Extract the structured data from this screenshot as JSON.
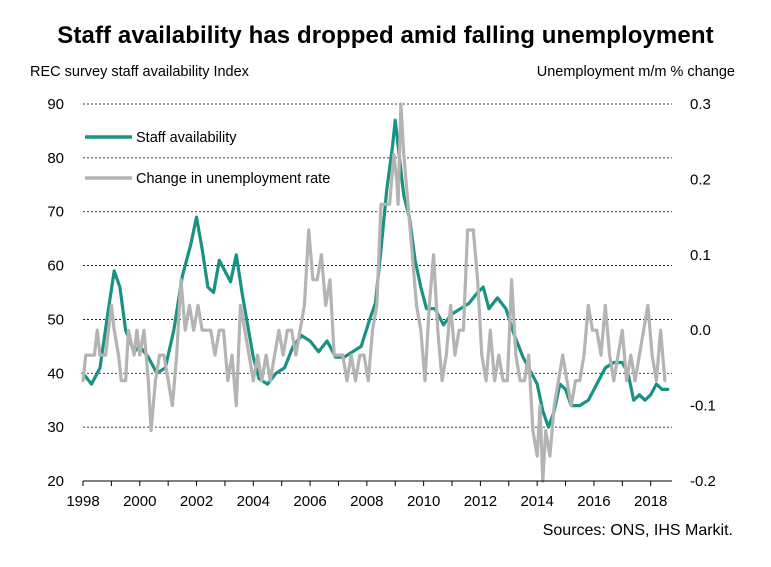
{
  "chart_data": {
    "type": "line",
    "title": "Staff availability has dropped amid falling unemployment",
    "ylabel": "REC survey staff availability  Index",
    "y2label": "Unemployment m/m % change",
    "source": "Sources: ONS,  IHS Markit.",
    "ylim": [
      20,
      90
    ],
    "y2lim": [
      -0.2,
      0.3
    ],
    "xlim": [
      1998,
      2018.75
    ],
    "x_ticks": [
      "1998",
      "2000",
      "2002",
      "2004",
      "2006",
      "2008",
      "2010",
      "2012",
      "2014",
      "2016",
      "2018"
    ],
    "y_ticks": [
      "90",
      "80",
      "70",
      "60",
      "50",
      "40",
      "30",
      "20"
    ],
    "y2_ticks": [
      "0.3",
      "0.2",
      "0.1",
      "0.0",
      "-0.1",
      "-0.2"
    ],
    "gridlines": "horizontal dashed",
    "legend_position": "top-left",
    "series": [
      {
        "name": "Staff availability",
        "axis": "left",
        "color": "#1a9283",
        "points": [
          [
            1998.0,
            40
          ],
          [
            1998.3,
            38
          ],
          [
            1998.6,
            41
          ],
          [
            1998.9,
            52
          ],
          [
            1999.1,
            59
          ],
          [
            1999.3,
            56
          ],
          [
            1999.5,
            48
          ],
          [
            1999.8,
            44
          ],
          [
            2000.0,
            45
          ],
          [
            2000.3,
            43
          ],
          [
            2000.6,
            40
          ],
          [
            2000.9,
            41
          ],
          [
            2001.2,
            48
          ],
          [
            2001.5,
            58
          ],
          [
            2001.8,
            64
          ],
          [
            2002.0,
            69
          ],
          [
            2002.2,
            63
          ],
          [
            2002.4,
            56
          ],
          [
            2002.6,
            55
          ],
          [
            2002.8,
            61
          ],
          [
            2003.0,
            59
          ],
          [
            2003.2,
            57
          ],
          [
            2003.4,
            62
          ],
          [
            2003.6,
            55
          ],
          [
            2003.8,
            49
          ],
          [
            2004.0,
            43
          ],
          [
            2004.2,
            39
          ],
          [
            2004.5,
            38
          ],
          [
            2004.8,
            40
          ],
          [
            2005.1,
            41
          ],
          [
            2005.4,
            45
          ],
          [
            2005.7,
            47
          ],
          [
            2006.0,
            46
          ],
          [
            2006.3,
            44
          ],
          [
            2006.6,
            46
          ],
          [
            2006.9,
            43
          ],
          [
            2007.2,
            43
          ],
          [
            2007.5,
            44
          ],
          [
            2007.8,
            45
          ],
          [
            2008.1,
            50
          ],
          [
            2008.3,
            53
          ],
          [
            2008.5,
            63
          ],
          [
            2008.7,
            74
          ],
          [
            2008.9,
            82
          ],
          [
            2009.0,
            87
          ],
          [
            2009.15,
            80
          ],
          [
            2009.3,
            73
          ],
          [
            2009.5,
            69
          ],
          [
            2009.7,
            61
          ],
          [
            2009.9,
            56
          ],
          [
            2010.1,
            52
          ],
          [
            2010.4,
            52
          ],
          [
            2010.7,
            49
          ],
          [
            2011.0,
            51
          ],
          [
            2011.3,
            52
          ],
          [
            2011.6,
            53
          ],
          [
            2011.9,
            55
          ],
          [
            2012.1,
            56
          ],
          [
            2012.3,
            52
          ],
          [
            2012.6,
            54
          ],
          [
            2012.9,
            52
          ],
          [
            2013.2,
            47
          ],
          [
            2013.5,
            43
          ],
          [
            2013.8,
            40
          ],
          [
            2014.0,
            38
          ],
          [
            2014.2,
            33
          ],
          [
            2014.4,
            30
          ],
          [
            2014.6,
            33
          ],
          [
            2014.8,
            38
          ],
          [
            2015.0,
            37
          ],
          [
            2015.2,
            34
          ],
          [
            2015.5,
            34
          ],
          [
            2015.8,
            35
          ],
          [
            2016.1,
            38
          ],
          [
            2016.4,
            41
          ],
          [
            2016.7,
            42
          ],
          [
            2017.0,
            42
          ],
          [
            2017.2,
            40
          ],
          [
            2017.4,
            35
          ],
          [
            2017.6,
            36
          ],
          [
            2017.8,
            35
          ],
          [
            2018.0,
            36
          ],
          [
            2018.2,
            38
          ],
          [
            2018.4,
            37
          ],
          [
            2018.6,
            37
          ]
        ]
      },
      {
        "name": "Change in unemployment rate",
        "axis": "right",
        "color": "#b4b4b4",
        "points": [
          [
            1998.0,
            -0.067
          ],
          [
            1998.1,
            -0.033
          ],
          [
            1998.4,
            -0.033
          ],
          [
            1998.5,
            0.0
          ],
          [
            1998.6,
            -0.033
          ],
          [
            1998.8,
            -0.033
          ],
          [
            1998.9,
            0.0
          ],
          [
            1999.0,
            0.033
          ],
          [
            1999.1,
            0.0
          ],
          [
            1999.25,
            -0.033
          ],
          [
            1999.35,
            -0.067
          ],
          [
            1999.5,
            -0.067
          ],
          [
            1999.6,
            0.0
          ],
          [
            1999.8,
            -0.033
          ],
          [
            1999.9,
            0.0
          ],
          [
            2000.0,
            -0.033
          ],
          [
            2000.15,
            0.0
          ],
          [
            2000.3,
            -0.067
          ],
          [
            2000.4,
            -0.133
          ],
          [
            2000.55,
            -0.067
          ],
          [
            2000.7,
            -0.033
          ],
          [
            2000.85,
            -0.033
          ],
          [
            2001.0,
            -0.067
          ],
          [
            2001.15,
            -0.1
          ],
          [
            2001.3,
            -0.033
          ],
          [
            2001.45,
            0.067
          ],
          [
            2001.6,
            0.0
          ],
          [
            2001.75,
            0.033
          ],
          [
            2001.9,
            0.0
          ],
          [
            2002.05,
            0.033
          ],
          [
            2002.2,
            0.0
          ],
          [
            2002.35,
            0.0
          ],
          [
            2002.5,
            0.0
          ],
          [
            2002.65,
            -0.033
          ],
          [
            2002.8,
            0.0
          ],
          [
            2002.95,
            0.0
          ],
          [
            2003.1,
            -0.067
          ],
          [
            2003.25,
            -0.033
          ],
          [
            2003.4,
            -0.1
          ],
          [
            2003.55,
            0.033
          ],
          [
            2003.7,
            0.0
          ],
          [
            2003.85,
            -0.033
          ],
          [
            2004.0,
            -0.067
          ],
          [
            2004.15,
            -0.033
          ],
          [
            2004.3,
            -0.067
          ],
          [
            2004.45,
            -0.033
          ],
          [
            2004.6,
            -0.067
          ],
          [
            2004.75,
            -0.033
          ],
          [
            2004.9,
            0.0
          ],
          [
            2005.05,
            -0.033
          ],
          [
            2005.2,
            0.0
          ],
          [
            2005.35,
            0.0
          ],
          [
            2005.5,
            -0.033
          ],
          [
            2005.65,
            0.0
          ],
          [
            2005.8,
            0.033
          ],
          [
            2005.95,
            0.133
          ],
          [
            2006.1,
            0.067
          ],
          [
            2006.25,
            0.067
          ],
          [
            2006.4,
            0.1
          ],
          [
            2006.55,
            0.033
          ],
          [
            2006.7,
            0.067
          ],
          [
            2006.85,
            -0.033
          ],
          [
            2007.0,
            -0.033
          ],
          [
            2007.15,
            -0.033
          ],
          [
            2007.3,
            -0.067
          ],
          [
            2007.45,
            -0.033
          ],
          [
            2007.6,
            -0.067
          ],
          [
            2007.75,
            -0.033
          ],
          [
            2007.9,
            -0.033
          ],
          [
            2008.05,
            -0.067
          ],
          [
            2008.2,
            0.0
          ],
          [
            2008.35,
            0.033
          ],
          [
            2008.5,
            0.167
          ],
          [
            2008.65,
            0.167
          ],
          [
            2008.8,
            0.167
          ],
          [
            2008.95,
            0.233
          ],
          [
            2009.05,
            0.2
          ],
          [
            2009.1,
            0.167
          ],
          [
            2009.2,
            0.3
          ],
          [
            2009.3,
            0.233
          ],
          [
            2009.45,
            0.167
          ],
          [
            2009.6,
            0.1
          ],
          [
            2009.75,
            0.033
          ],
          [
            2009.9,
            0.0
          ],
          [
            2010.05,
            -0.067
          ],
          [
            2010.2,
            0.033
          ],
          [
            2010.35,
            0.1
          ],
          [
            2010.5,
            0.0
          ],
          [
            2010.65,
            -0.067
          ],
          [
            2010.8,
            -0.033
          ],
          [
            2010.95,
            0.033
          ],
          [
            2011.1,
            -0.033
          ],
          [
            2011.25,
            0.0
          ],
          [
            2011.4,
            0.0
          ],
          [
            2011.55,
            0.133
          ],
          [
            2011.75,
            0.133
          ],
          [
            2011.9,
            0.067
          ],
          [
            2012.05,
            -0.033
          ],
          [
            2012.2,
            -0.067
          ],
          [
            2012.35,
            0.0
          ],
          [
            2012.5,
            -0.067
          ],
          [
            2012.65,
            -0.033
          ],
          [
            2012.8,
            -0.067
          ],
          [
            2012.95,
            -0.067
          ],
          [
            2013.1,
            0.067
          ],
          [
            2013.25,
            -0.033
          ],
          [
            2013.4,
            -0.067
          ],
          [
            2013.55,
            -0.067
          ],
          [
            2013.7,
            -0.033
          ],
          [
            2013.85,
            -0.133
          ],
          [
            2014.0,
            -0.167
          ],
          [
            2014.1,
            -0.1
          ],
          [
            2014.2,
            -0.2
          ],
          [
            2014.3,
            -0.133
          ],
          [
            2014.45,
            -0.167
          ],
          [
            2014.6,
            -0.1
          ],
          [
            2014.75,
            -0.067
          ],
          [
            2014.9,
            -0.033
          ],
          [
            2015.05,
            -0.067
          ],
          [
            2015.2,
            -0.1
          ],
          [
            2015.35,
            -0.067
          ],
          [
            2015.5,
            -0.067
          ],
          [
            2015.65,
            -0.033
          ],
          [
            2015.8,
            0.033
          ],
          [
            2015.95,
            0.0
          ],
          [
            2016.1,
            0.0
          ],
          [
            2016.25,
            -0.033
          ],
          [
            2016.4,
            0.033
          ],
          [
            2016.55,
            -0.033
          ],
          [
            2016.7,
            -0.067
          ],
          [
            2016.85,
            -0.033
          ],
          [
            2017.0,
            0.0
          ],
          [
            2017.15,
            -0.067
          ],
          [
            2017.3,
            -0.033
          ],
          [
            2017.45,
            -0.067
          ],
          [
            2017.6,
            -0.033
          ],
          [
            2017.75,
            0.0
          ],
          [
            2017.9,
            0.033
          ],
          [
            2018.05,
            -0.033
          ],
          [
            2018.2,
            -0.067
          ],
          [
            2018.35,
            0.0
          ],
          [
            2018.5,
            -0.067
          ]
        ]
      }
    ]
  }
}
